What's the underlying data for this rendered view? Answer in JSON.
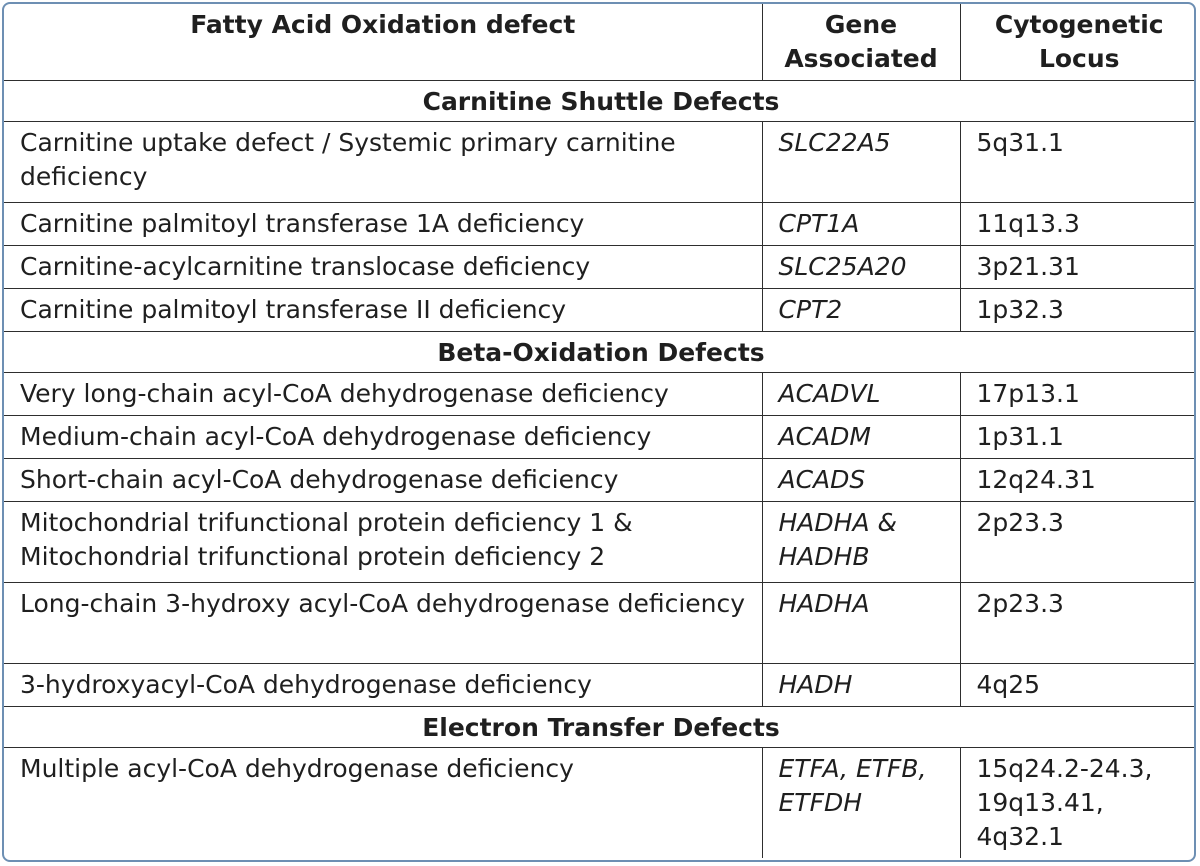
{
  "headers": {
    "defect": "Fatty Acid Oxidation defect",
    "gene": "Gene Associated",
    "locus": "Cytogenetic Locus"
  },
  "sections": [
    {
      "title": "Carnitine Shuttle Defects",
      "rows": [
        {
          "defect": "Carnitine uptake defect / Systemic primary carnitine deficiency",
          "gene": "SLC22A5",
          "locus": "5q31.1"
        },
        {
          "defect": "Carnitine palmitoyl transferase 1A deficiency",
          "gene": "CPT1A",
          "locus": "11q13.3"
        },
        {
          "defect": "Carnitine-acylcarnitine translocase deficiency",
          "gene": "SLC25A20",
          "locus": "3p21.31"
        },
        {
          "defect": "Carnitine palmitoyl transferase II deficiency",
          "gene": "CPT2",
          "locus": "1p32.3"
        }
      ]
    },
    {
      "title": "Beta-Oxidation Defects",
      "rows": [
        {
          "defect": "Very long-chain acyl-CoA dehydrogenase deficiency",
          "gene": "ACADVL",
          "locus": "17p13.1"
        },
        {
          "defect": "Medium-chain acyl-CoA dehydrogenase deficiency",
          "gene": "ACADM",
          "locus": "1p31.1"
        },
        {
          "defect": "Short-chain acyl-CoA dehydrogenase deficiency",
          "gene": "ACADS",
          "locus": "12q24.31"
        },
        {
          "defect": "Mitochondrial trifunctional protein deficiency 1 & Mitochondrial trifunctional protein deficiency 2",
          "gene": "HADHA & HADHB",
          "locus": "2p23.3"
        },
        {
          "defect": "Long-chain 3-hydroxy acyl-CoA dehydrogenase deficiency",
          "gene": "HADHA",
          "locus": "2p23.3"
        },
        {
          "defect": "3-hydroxyacyl-CoA dehydrogenase deficiency",
          "gene": "HADH",
          "locus": "4q25"
        }
      ]
    },
    {
      "title": "Electron Transfer Defects",
      "rows": [
        {
          "defect": "Multiple acyl-CoA dehydrogenase deficiency",
          "gene": "ETFA, ETFB, ETFDH",
          "locus": "15q24.2-24.3, 19q13.41, 4q32.1"
        }
      ]
    }
  ],
  "colors": {
    "border": "#6d8fb3",
    "grid": "#2e2e2e",
    "text": "#1f1f1f"
  }
}
